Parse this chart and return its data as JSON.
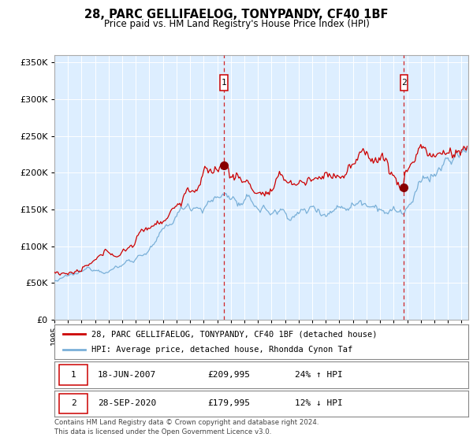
{
  "title": "28, PARC GELLIFAELOG, TONYPANDY, CF40 1BF",
  "subtitle": "Price paid vs. HM Land Registry's House Price Index (HPI)",
  "ylim": [
    0,
    360000
  ],
  "xlim_start": 1995.0,
  "xlim_end": 2025.5,
  "background_color": "#ddeeff",
  "grid_color": "#c8d8e8",
  "red_line_color": "#cc0000",
  "blue_line_color": "#7ab0d8",
  "marker1_date": 2007.5,
  "marker1_price": 209995,
  "marker2_date": 2020.75,
  "marker2_price": 179995,
  "legend_line1": "28, PARC GELLIFAELOG, TONYPANDY, CF40 1BF (detached house)",
  "legend_line2": "HPI: Average price, detached house, Rhondda Cynon Taf",
  "ann1_box": "1",
  "ann1_date": "18-JUN-2007",
  "ann1_price": "£209,995",
  "ann1_hpi": "24% ↑ HPI",
  "ann2_box": "2",
  "ann2_date": "28-SEP-2020",
  "ann2_price": "£179,995",
  "ann2_hpi": "12% ↓ HPI",
  "footnote1": "Contains HM Land Registry data © Crown copyright and database right 2024.",
  "footnote2": "This data is licensed under the Open Government Licence v3.0.",
  "yticks": [
    0,
    50000,
    100000,
    150000,
    200000,
    250000,
    300000,
    350000
  ],
  "ytick_labels": [
    "£0",
    "£50K",
    "£100K",
    "£150K",
    "£200K",
    "£250K",
    "£300K",
    "£350K"
  ]
}
